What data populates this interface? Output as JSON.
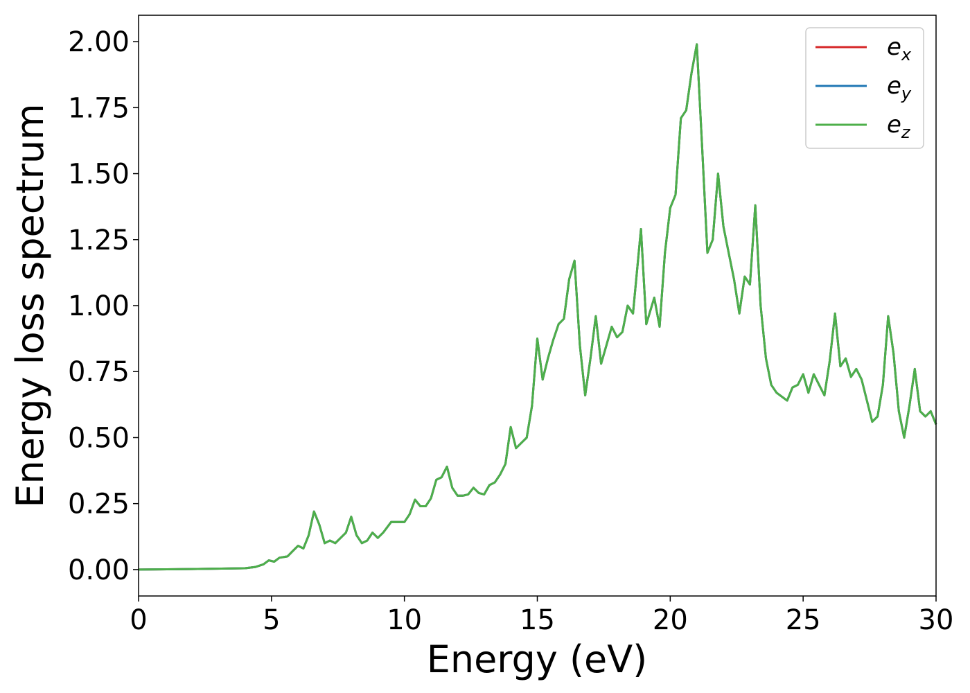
{
  "chart_data": {
    "type": "line",
    "title": "",
    "xlabel": "Energy (eV)",
    "ylabel": "Energy loss spectrum",
    "xlim": [
      0,
      30
    ],
    "ylim": [
      -0.1,
      2.1
    ],
    "xticks": [
      0,
      5,
      10,
      15,
      20,
      25,
      30
    ],
    "yticks": [
      0.0,
      0.25,
      0.5,
      0.75,
      1.0,
      1.25,
      1.5,
      1.75,
      2.0
    ],
    "xtick_labels": [
      "0",
      "5",
      "10",
      "15",
      "20",
      "25",
      "30"
    ],
    "ytick_labels": [
      "0.00",
      "0.25",
      "0.50",
      "0.75",
      "1.00",
      "1.25",
      "1.50",
      "1.75",
      "2.00"
    ],
    "grid": false,
    "legend_position": "top-right",
    "x": [
      0,
      2,
      4,
      4.4,
      4.7,
      4.9,
      5.1,
      5.3,
      5.6,
      5.8,
      6.0,
      6.2,
      6.4,
      6.6,
      6.8,
      7.0,
      7.2,
      7.4,
      7.6,
      7.8,
      8.0,
      8.2,
      8.4,
      8.6,
      8.8,
      9.0,
      9.2,
      9.5,
      9.7,
      10.0,
      10.2,
      10.4,
      10.6,
      10.8,
      11.0,
      11.2,
      11.4,
      11.6,
      11.8,
      12.0,
      12.2,
      12.4,
      12.6,
      12.8,
      13.0,
      13.2,
      13.4,
      13.6,
      13.8,
      14.0,
      14.2,
      14.4,
      14.6,
      14.8,
      15.0,
      15.2,
      15.4,
      15.6,
      15.8,
      16.0,
      16.2,
      16.4,
      16.6,
      16.8,
      17.0,
      17.2,
      17.4,
      17.6,
      17.8,
      18.0,
      18.2,
      18.4,
      18.6,
      18.9,
      19.1,
      19.4,
      19.6,
      19.8,
      20.0,
      20.2,
      20.4,
      20.6,
      20.8,
      21.0,
      21.2,
      21.4,
      21.6,
      21.8,
      22.0,
      22.2,
      22.4,
      22.6,
      22.8,
      23.0,
      23.2,
      23.4,
      23.6,
      23.8,
      24.0,
      24.4,
      24.6,
      24.8,
      25.0,
      25.2,
      25.4,
      25.6,
      25.8,
      26.0,
      26.2,
      26.4,
      26.6,
      26.8,
      27.0,
      27.2,
      27.6,
      27.8,
      28.0,
      28.2,
      28.4,
      28.6,
      28.8,
      29.0,
      29.2,
      29.4,
      29.6,
      29.8,
      30.0
    ],
    "y": [
      0.0,
      0.002,
      0.005,
      0.01,
      0.02,
      0.035,
      0.03,
      0.045,
      0.05,
      0.07,
      0.09,
      0.08,
      0.13,
      0.22,
      0.17,
      0.1,
      0.11,
      0.1,
      0.12,
      0.14,
      0.2,
      0.13,
      0.1,
      0.11,
      0.14,
      0.12,
      0.14,
      0.18,
      0.18,
      0.18,
      0.21,
      0.265,
      0.24,
      0.24,
      0.27,
      0.34,
      0.35,
      0.39,
      0.31,
      0.28,
      0.28,
      0.285,
      0.31,
      0.29,
      0.285,
      0.32,
      0.33,
      0.36,
      0.4,
      0.54,
      0.46,
      0.48,
      0.5,
      0.62,
      0.875,
      0.72,
      0.8,
      0.87,
      0.93,
      0.95,
      1.1,
      1.17,
      0.85,
      0.66,
      0.8,
      0.96,
      0.78,
      0.85,
      0.92,
      0.88,
      0.9,
      1.0,
      0.97,
      1.29,
      0.93,
      1.03,
      0.92,
      1.2,
      1.37,
      1.42,
      1.71,
      1.74,
      1.88,
      1.99,
      1.6,
      1.2,
      1.25,
      1.5,
      1.3,
      1.2,
      1.1,
      0.97,
      1.11,
      1.08,
      1.38,
      1.0,
      0.8,
      0.7,
      0.67,
      0.64,
      0.69,
      0.7,
      0.74,
      0.67,
      0.74,
      0.7,
      0.66,
      0.79,
      0.97,
      0.77,
      0.8,
      0.73,
      0.76,
      0.72,
      0.56,
      0.58,
      0.7,
      0.96,
      0.82,
      0.6,
      0.5,
      0.62,
      0.76,
      0.6,
      0.58,
      0.6,
      0.55
    ],
    "series": [
      {
        "name_main": "e",
        "name_sub": "x",
        "color": "#d62728"
      },
      {
        "name_main": "e",
        "name_sub": "y",
        "color": "#1f77b4"
      },
      {
        "name_main": "e",
        "name_sub": "z",
        "color": "#4daf4a"
      }
    ]
  }
}
